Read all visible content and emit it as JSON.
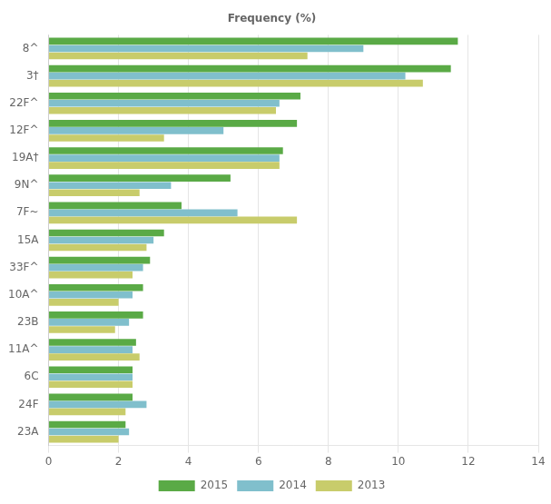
{
  "chart_data": {
    "type": "bar",
    "orientation": "horizontal",
    "title": "Frequency (%)",
    "categories": [
      "8^",
      "3†",
      "22F^",
      "12F^",
      "19A†",
      "9N^",
      "7F~",
      "15A",
      "33F^",
      "10A^",
      "23B",
      "11A^",
      "6C",
      "24F",
      "23A"
    ],
    "series": [
      {
        "name": "2015",
        "color": "#5aaa46",
        "values": [
          11.7,
          11.5,
          7.2,
          7.1,
          6.7,
          5.2,
          3.8,
          3.3,
          2.9,
          2.7,
          2.7,
          2.5,
          2.4,
          2.4,
          2.2
        ]
      },
      {
        "name": "2014",
        "color": "#80bfcc",
        "values": [
          9.0,
          10.2,
          6.6,
          5.0,
          6.6,
          3.5,
          5.4,
          3.0,
          2.7,
          2.4,
          2.3,
          2.4,
          2.4,
          2.8,
          2.3
        ]
      },
      {
        "name": "2013",
        "color": "#c8cc6b",
        "values": [
          7.4,
          10.7,
          6.5,
          3.3,
          6.6,
          2.6,
          7.1,
          2.8,
          2.4,
          2.0,
          1.9,
          2.6,
          2.4,
          2.2,
          2.0
        ]
      }
    ],
    "xlim": [
      0,
      14
    ],
    "xticks": [
      0,
      2,
      4,
      6,
      8,
      10,
      12,
      14
    ],
    "grid": true,
    "legend": "bottom"
  }
}
